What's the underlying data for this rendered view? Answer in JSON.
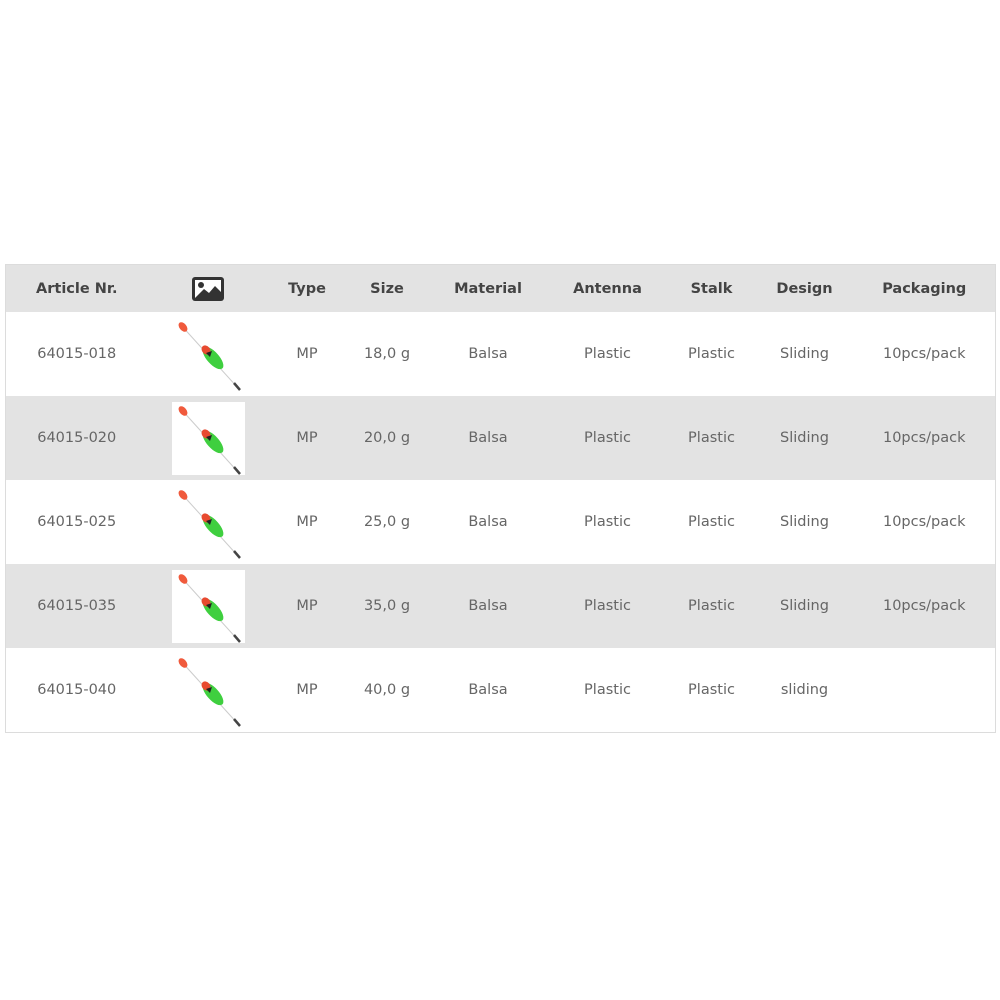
{
  "table": {
    "headers": [
      "Article Nr.",
      "",
      "Type",
      "Size",
      "Material",
      "Antenna",
      "Stalk",
      "Design",
      "Packaging"
    ],
    "header_icon": "image-icon",
    "rows": [
      {
        "article": "64015-018",
        "image": "float-image",
        "type": "MP",
        "size": "18,0 g",
        "material": "Balsa",
        "antenna": "Plastic",
        "stalk": "Plastic",
        "design": "Sliding",
        "packaging": "10pcs/pack"
      },
      {
        "article": "64015-020",
        "image": "float-image",
        "type": "MP",
        "size": "20,0 g",
        "material": "Balsa",
        "antenna": "Plastic",
        "stalk": "Plastic",
        "design": "Sliding",
        "packaging": "10pcs/pack"
      },
      {
        "article": "64015-025",
        "image": "float-image",
        "type": "MP",
        "size": "25,0 g",
        "material": "Balsa",
        "antenna": "Plastic",
        "stalk": "Plastic",
        "design": "Sliding",
        "packaging": "10pcs/pack"
      },
      {
        "article": "64015-035",
        "image": "float-image",
        "type": "MP",
        "size": "35,0 g",
        "material": "Balsa",
        "antenna": "Plastic",
        "stalk": "Plastic",
        "design": "Sliding",
        "packaging": "10pcs/pack"
      },
      {
        "article": "64015-040",
        "image": "float-image",
        "type": "MP",
        "size": "40,0 g",
        "material": "Balsa",
        "antenna": "Plastic",
        "stalk": "Plastic",
        "design": "sliding",
        "packaging": ""
      }
    ]
  },
  "colors": {
    "header_bg": "#e3e3e3",
    "alt_row_bg": "#e3e3e3",
    "text": "#666666",
    "float_green": "#3fcf3f",
    "float_red": "#f05a3c"
  }
}
